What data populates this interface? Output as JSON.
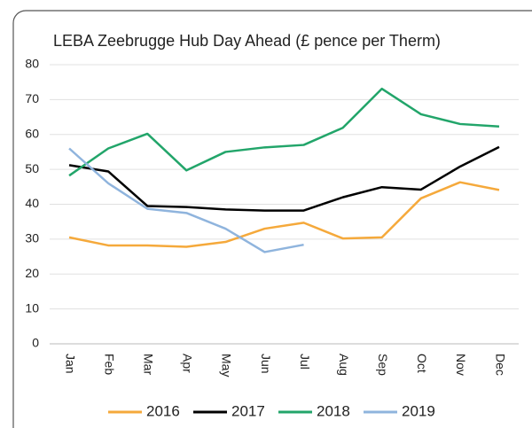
{
  "chart_data": {
    "type": "line",
    "title": "LEBA Zeebrugge Hub Day Ahead (£ pence per Therm)",
    "categories": [
      "Jan",
      "Feb",
      "Mar",
      "Apr",
      "May",
      "Jun",
      "Jul",
      "Aug",
      "Sep",
      "Oct",
      "Nov",
      "Dec"
    ],
    "series": [
      {
        "name": "2016",
        "color": "#f5a93b",
        "values": [
          30.5,
          28.2,
          28.2,
          27.8,
          29.2,
          33,
          34.7,
          30.2,
          30.5,
          41.7,
          46.3,
          44.1
        ]
      },
      {
        "name": "2017",
        "color": "#000000",
        "values": [
          51.2,
          49.4,
          39.5,
          39.2,
          38.5,
          38.2,
          38.2,
          42,
          44.9,
          44.2,
          50.8,
          56.4
        ]
      },
      {
        "name": "2018",
        "color": "#22a56a",
        "values": [
          48.2,
          56,
          60.2,
          49.7,
          55,
          56.3,
          57,
          61.9,
          73.1,
          65.8,
          63,
          62.3
        ]
      },
      {
        "name": "2019",
        "color": "#8fb4dd",
        "values": [
          56,
          46,
          38.7,
          37.5,
          33,
          26.3,
          28.4,
          null,
          null,
          null,
          null,
          null
        ]
      }
    ],
    "ylim": [
      0,
      80
    ],
    "yticks": [
      0,
      10,
      20,
      30,
      40,
      50,
      60,
      70,
      80
    ],
    "grid": true
  }
}
